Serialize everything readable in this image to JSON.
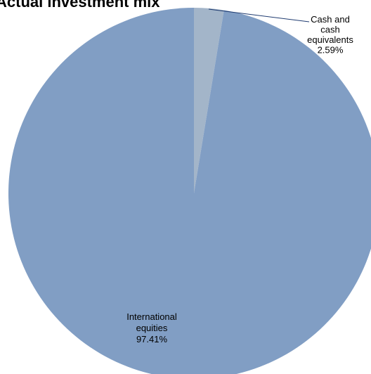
{
  "chart_data": {
    "type": "pie",
    "title": "Actual investment mix",
    "categories": [
      "Cash and cash equivalents",
      "International equities"
    ],
    "values": [
      2.59,
      97.41
    ],
    "colors": [
      "#a3b5c9",
      "#819ec4"
    ],
    "slices": [
      {
        "name": "Cash and cash equivalents",
        "value": 2.59,
        "color": "#a3b5c9",
        "label_lines": [
          "Cash and",
          "cash",
          "equivalents",
          "2.59%"
        ]
      },
      {
        "name": "International equities",
        "value": 97.41,
        "color": "#819ec4",
        "label_lines": [
          "International",
          "equities",
          "97.41%"
        ]
      }
    ],
    "leader_line_color": "#1f3b70",
    "background": "#ffffff"
  }
}
